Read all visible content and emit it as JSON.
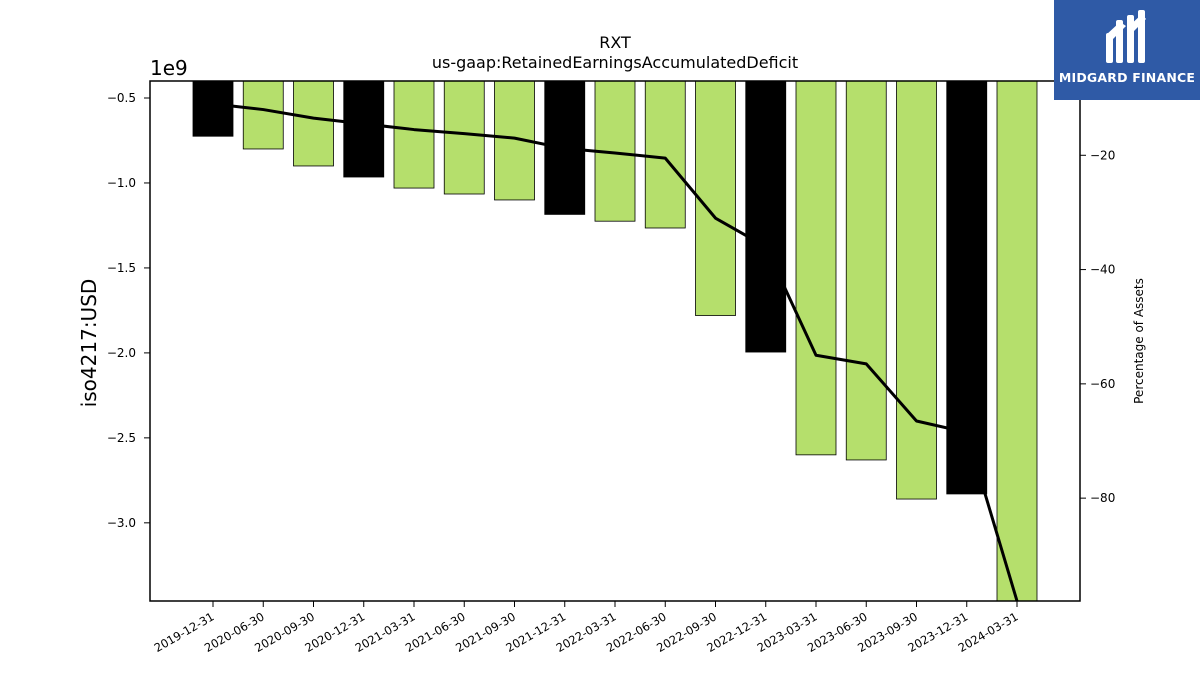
{
  "chart_data": {
    "type": "bar",
    "title": "RXT",
    "subtitle": "us-gaap:RetainedEarningsAccumulatedDeficit",
    "ylabel": "iso4217:USD",
    "y_offset_label": "1e9",
    "y2label": "Percentage of Assets",
    "categories": [
      "2019-12-31",
      "2020-06-30",
      "2020-09-30",
      "2020-12-31",
      "2021-03-31",
      "2021-06-30",
      "2021-09-30",
      "2021-12-31",
      "2022-03-31",
      "2022-06-30",
      "2022-09-30",
      "2022-12-31",
      "2023-03-31",
      "2023-06-30",
      "2023-09-30",
      "2023-12-31",
      "2024-03-31"
    ],
    "values": [
      -0.725,
      -0.8,
      -0.9,
      -0.965,
      -1.03,
      -1.065,
      -1.1,
      -1.185,
      -1.225,
      -1.265,
      -1.78,
      -1.995,
      -2.6,
      -2.63,
      -2.86,
      -2.83,
      -3.5
    ],
    "bar_colors": [
      "#000000",
      "#b5df6c",
      "#b5df6c",
      "#000000",
      "#b5df6c",
      "#b5df6c",
      "#b5df6c",
      "#000000",
      "#b5df6c",
      "#b5df6c",
      "#b5df6c",
      "#000000",
      "#b5df6c",
      "#b5df6c",
      "#b5df6c",
      "#000000",
      "#b5df6c"
    ],
    "percent_of_assets": [
      -11.0,
      -12.0,
      -13.5,
      -14.5,
      -15.5,
      -16.2,
      -17.0,
      -18.8,
      -19.6,
      -20.5,
      -31.0,
      -36.0,
      -55.0,
      -56.5,
      -66.5,
      -68.5,
      -98.0
    ],
    "ylim": [
      -3.46,
      -0.4
    ],
    "yticks": [
      -0.5,
      -1.0,
      -1.5,
      -2.0,
      -2.5,
      -3.0
    ],
    "ytick_labels": [
      "−0.5",
      "−1.0",
      "−1.5",
      "−2.0",
      "−2.5",
      "−3.0"
    ],
    "y2lim": [
      -98.0,
      -7.0
    ],
    "y2ticks": [
      -20,
      -40,
      -60,
      -80
    ],
    "y2tick_labels": [
      "−20",
      "−40",
      "−60",
      "−80"
    ],
    "grid": false,
    "colors": {
      "accent": "#b5df6c",
      "highlight": "#000000",
      "line": "#000000"
    }
  },
  "logo": {
    "text": "MIDGARD FINANCE",
    "bg": "#2f5aa6"
  }
}
